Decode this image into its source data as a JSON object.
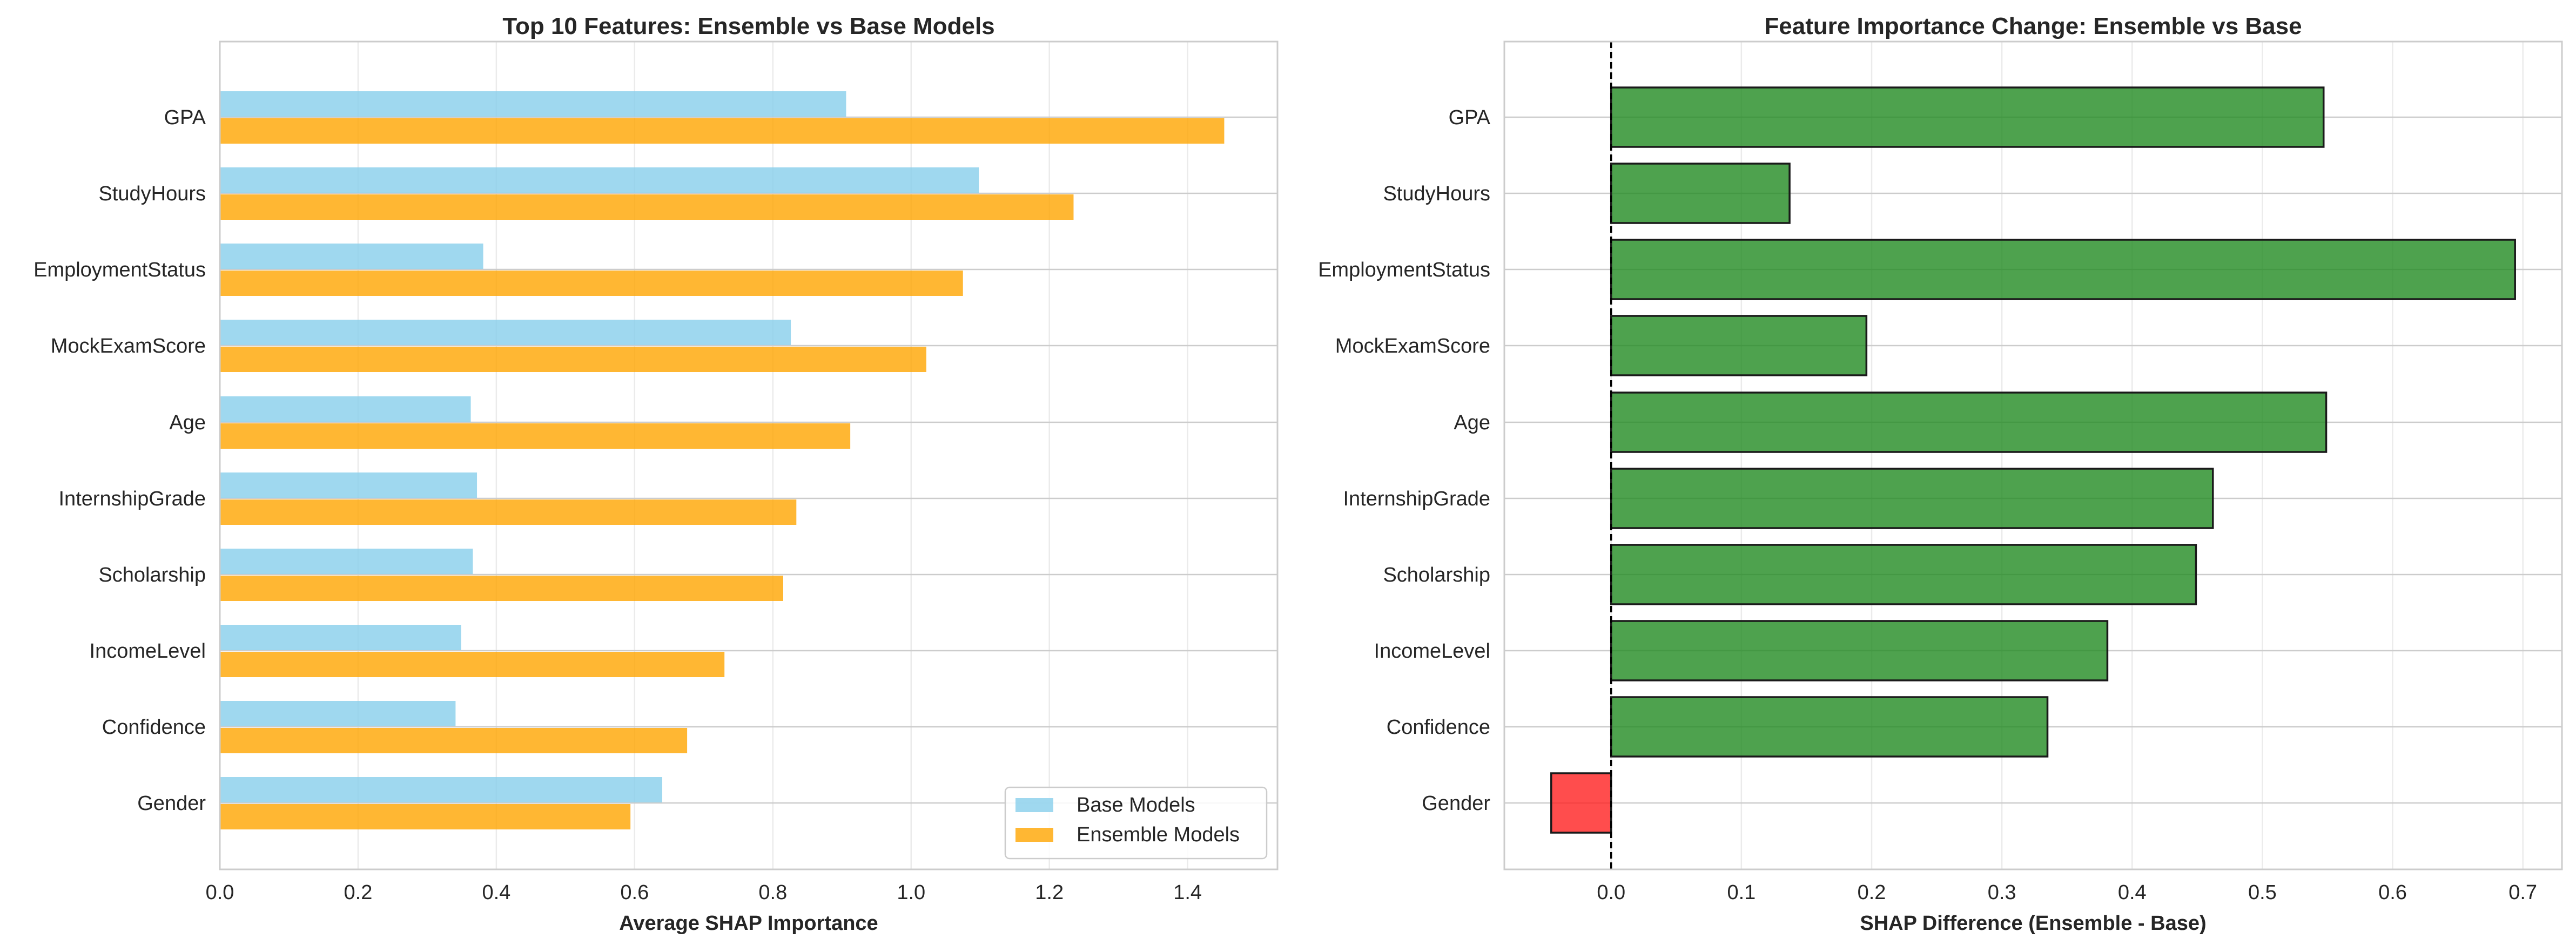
{
  "chart_data": [
    {
      "type": "bar",
      "orientation": "horizontal",
      "title": "Top 10 Features: Ensemble vs Base Models",
      "xlabel": "Average SHAP Importance",
      "ylabel": "",
      "xlim": [
        0,
        1.53
      ],
      "xticks": [
        "0.0",
        "0.2",
        "0.4",
        "0.6",
        "0.8",
        "1.0",
        "1.2",
        "1.4"
      ],
      "grid": true,
      "legend_position": "lower-right",
      "categories": [
        "GPA",
        "StudyHours",
        "EmploymentStatus",
        "MockExamScore",
        "Age",
        "InternshipGrade",
        "Scholarship",
        "IncomeLevel",
        "Confidence",
        "Gender"
      ],
      "series": [
        {
          "name": "Base Models",
          "color": "#87CEEB",
          "values": [
            0.906,
            1.098,
            0.381,
            0.826,
            0.363,
            0.372,
            0.366,
            0.349,
            0.341,
            0.64
          ]
        },
        {
          "name": "Ensemble Models",
          "color": "#FFA500",
          "values": [
            1.453,
            1.235,
            1.075,
            1.022,
            0.912,
            0.834,
            0.815,
            0.73,
            0.676,
            0.594
          ]
        }
      ]
    },
    {
      "type": "bar",
      "orientation": "horizontal",
      "title": "Feature Importance Change: Ensemble vs Base",
      "xlabel": "SHAP Difference (Ensemble - Base)",
      "ylabel": "",
      "xlim": [
        -0.082,
        0.73
      ],
      "xticks": [
        "0.0",
        "0.1",
        "0.2",
        "0.3",
        "0.4",
        "0.5",
        "0.6",
        "0.7"
      ],
      "grid": true,
      "zero_line": "dashed",
      "positive_color": "#228B22",
      "negative_color": "#FF2020",
      "categories": [
        "GPA",
        "StudyHours",
        "EmploymentStatus",
        "MockExamScore",
        "Age",
        "InternshipGrade",
        "Scholarship",
        "IncomeLevel",
        "Confidence",
        "Gender"
      ],
      "values": [
        0.547,
        0.137,
        0.694,
        0.196,
        0.549,
        0.462,
        0.449,
        0.381,
        0.335,
        -0.046
      ]
    }
  ]
}
